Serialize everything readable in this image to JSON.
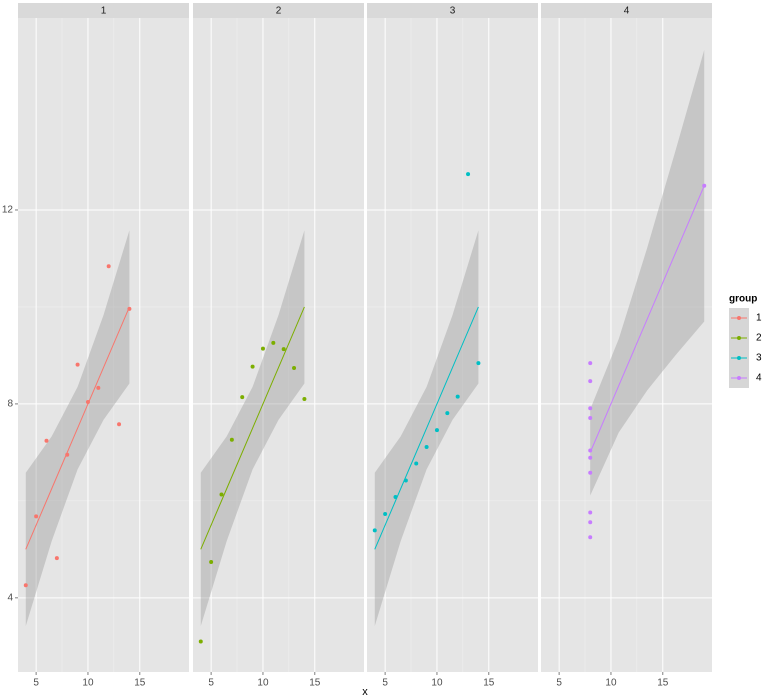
{
  "chart_data": {
    "type": "scatter",
    "x_label": "x",
    "legend_title": "group",
    "xlim": [
      3.25,
      19.75
    ],
    "ylim": [
      2.47,
      15.96
    ],
    "xticks": [
      5,
      10,
      15
    ],
    "yticks": [
      4,
      8,
      12
    ],
    "grid": true,
    "series": [
      {
        "name": "1",
        "color": "#F8766D",
        "x": [
          10,
          8,
          13,
          9,
          11,
          14,
          6,
          4,
          12,
          7,
          5
        ],
        "values": [
          8.04,
          6.95,
          7.58,
          8.81,
          8.33,
          9.96,
          7.24,
          4.26,
          10.84,
          4.82,
          5.68
        ],
        "fit": {
          "x": [
            4,
            6.5,
            9,
            11.5,
            14
          ],
          "y": [
            5,
            6.25,
            7.5,
            8.75,
            10
          ],
          "lower": [
            3.42,
            5.17,
            6.65,
            7.67,
            8.42
          ],
          "upper": [
            6.58,
            7.33,
            8.35,
            9.83,
            11.58
          ]
        }
      },
      {
        "name": "2",
        "color": "#7CAE00",
        "x": [
          10,
          8,
          13,
          9,
          11,
          14,
          6,
          4,
          12,
          7,
          5
        ],
        "values": [
          9.14,
          8.14,
          8.74,
          8.77,
          9.26,
          8.1,
          6.13,
          3.1,
          9.13,
          7.26,
          4.74
        ],
        "fit": {
          "x": [
            4,
            6.5,
            9,
            11.5,
            14
          ],
          "y": [
            5,
            6.25,
            7.5,
            8.75,
            10
          ],
          "lower": [
            3.42,
            5.17,
            6.65,
            7.67,
            8.42
          ],
          "upper": [
            6.58,
            7.33,
            8.35,
            9.83,
            11.58
          ]
        }
      },
      {
        "name": "3",
        "color": "#00BFC4",
        "x": [
          10,
          8,
          13,
          9,
          11,
          14,
          6,
          4,
          12,
          7,
          5
        ],
        "values": [
          7.46,
          6.77,
          12.74,
          7.11,
          7.81,
          8.84,
          6.08,
          5.39,
          8.15,
          6.42,
          5.73
        ],
        "fit": {
          "x": [
            4,
            6.5,
            9,
            11.5,
            14
          ],
          "y": [
            5,
            6.25,
            7.5,
            8.75,
            10
          ],
          "lower": [
            3.42,
            5.17,
            6.65,
            7.67,
            8.42
          ],
          "upper": [
            6.58,
            7.33,
            8.35,
            9.83,
            11.58
          ]
        }
      },
      {
        "name": "4",
        "color": "#C77CFF",
        "x": [
          8,
          8,
          8,
          8,
          8,
          8,
          8,
          19,
          8,
          8,
          8
        ],
        "values": [
          6.58,
          5.76,
          7.71,
          8.84,
          8.47,
          7.04,
          5.25,
          12.5,
          5.56,
          7.91,
          6.89
        ],
        "fit": {
          "x": [
            8,
            10.75,
            13.5,
            16.25,
            19
          ],
          "y": [
            7,
            8.375,
            9.75,
            11.125,
            12.5
          ],
          "lower": [
            6.11,
            7.41,
            8.28,
            9.01,
            9.7
          ],
          "upper": [
            7.89,
            9.34,
            11.22,
            13.24,
            15.3
          ]
        }
      }
    ]
  }
}
